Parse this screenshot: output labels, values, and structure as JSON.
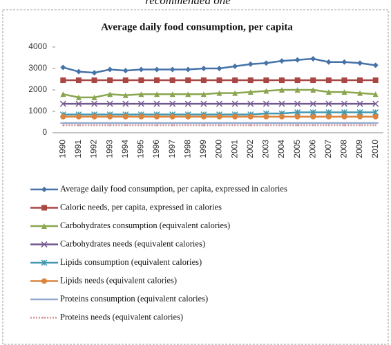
{
  "text_above": "recommended one",
  "chart_data": {
    "type": "line",
    "title": "Average daily food consumption, per capita",
    "categories": [
      "1990",
      "1991",
      "1992",
      "1993",
      "1994",
      "1995",
      "1996",
      "1997",
      "1998",
      "1999",
      "2000",
      "2001",
      "2002",
      "2003",
      "2004",
      "2005",
      "2006",
      "2007",
      "2008",
      "2009",
      "2010"
    ],
    "ylim": [
      0,
      4000
    ],
    "yticks": [
      0,
      1000,
      2000,
      3000,
      4000
    ],
    "grid": false,
    "legend": "bottom",
    "series": [
      {
        "name": "Average daily food consumption, per capita, expressed in calories",
        "color": "#4572a7",
        "marker": "diamond",
        "values": [
          3050,
          2850,
          2800,
          2950,
          2900,
          2950,
          2950,
          2950,
          2950,
          3000,
          3000,
          3100,
          3200,
          3250,
          3350,
          3400,
          3450,
          3300,
          3300,
          3250,
          3150
        ]
      },
      {
        "name": "Caloric needs, per capita, expressed in calories",
        "color": "#aa4643",
        "marker": "square",
        "values": [
          2450,
          2450,
          2450,
          2450,
          2450,
          2450,
          2450,
          2450,
          2450,
          2450,
          2450,
          2450,
          2450,
          2450,
          2450,
          2450,
          2450,
          2450,
          2450,
          2450,
          2450
        ]
      },
      {
        "name": "Carbohydrates consumption (equivalent calories)",
        "color": "#89a54e",
        "marker": "triangle",
        "values": [
          1800,
          1650,
          1650,
          1800,
          1750,
          1800,
          1800,
          1800,
          1800,
          1800,
          1850,
          1850,
          1900,
          1950,
          2000,
          2000,
          2000,
          1900,
          1900,
          1850,
          1800
        ]
      },
      {
        "name": "Carbohydrates needs (equivalent calories)",
        "color": "#71588f",
        "marker": "x",
        "values": [
          1350,
          1350,
          1350,
          1350,
          1350,
          1350,
          1350,
          1350,
          1350,
          1350,
          1350,
          1350,
          1350,
          1350,
          1350,
          1350,
          1350,
          1350,
          1350,
          1350,
          1350
        ]
      },
      {
        "name": "Lipids consumption (equivalent calories)",
        "color": "#4198af",
        "marker": "star",
        "values": [
          850,
          850,
          850,
          850,
          850,
          850,
          850,
          850,
          850,
          850,
          850,
          850,
          850,
          900,
          900,
          950,
          950,
          950,
          950,
          950,
          950
        ]
      },
      {
        "name": "Lipids needs (equivalent calories)",
        "color": "#db843d",
        "marker": "circle",
        "values": [
          750,
          750,
          750,
          750,
          750,
          750,
          750,
          750,
          750,
          750,
          750,
          750,
          750,
          750,
          750,
          750,
          750,
          750,
          750,
          750,
          750
        ]
      },
      {
        "name": "Proteins consumption (equivalent calories)",
        "color": "#93a9cf",
        "marker": "dash",
        "values": [
          450,
          450,
          450,
          450,
          450,
          450,
          450,
          450,
          450,
          450,
          450,
          450,
          450,
          450,
          450,
          450,
          450,
          450,
          450,
          450,
          450
        ]
      },
      {
        "name": "Proteins needs (equivalent calories)",
        "color": "#d19392",
        "marker": "dot",
        "values": [
          350,
          350,
          350,
          350,
          350,
          350,
          350,
          350,
          350,
          350,
          350,
          350,
          350,
          350,
          350,
          350,
          350,
          350,
          350,
          350,
          350
        ]
      }
    ]
  }
}
